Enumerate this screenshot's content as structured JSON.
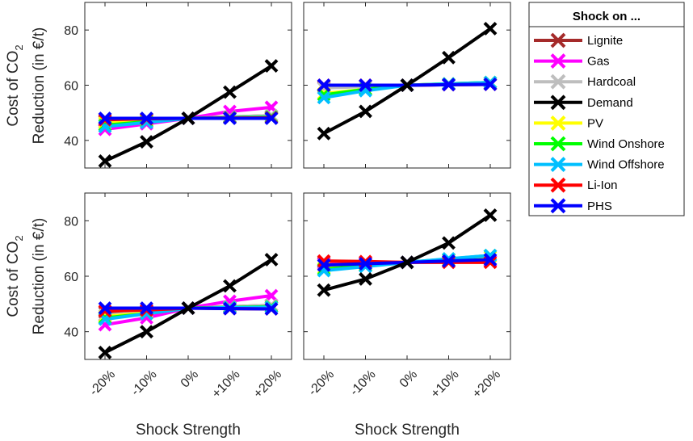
{
  "chart_data": {
    "type": "line",
    "legend": {
      "title": "Shock on ...",
      "placement": "right",
      "entries": [
        "Lignite",
        "Gas",
        "Hardcoal",
        "Demand",
        "PV",
        "Wind Onshore",
        "Wind Offshore",
        "Li-Ion",
        "PHS"
      ]
    },
    "colors": {
      "Lignite": "#a52a2a",
      "Gas": "#ff00ff",
      "Hardcoal": "#bebebe",
      "Demand": "#000000",
      "PV": "#ffff00",
      "Wind Onshore": "#00ff00",
      "Wind Offshore": "#00bfff",
      "Li-Ion": "#ff0000",
      "PHS": "#0000ff"
    },
    "x_categories": [
      "-20%",
      "-10%",
      "0%",
      "+10%",
      "+20%"
    ],
    "xlabel": "Shock Strength",
    "ylabel_line1": "Cost of CO",
    "ylabel_sub": "2",
    "ylabel_line2": "Reduction (in €/t)",
    "ylim": [
      30,
      90
    ],
    "yticks": [
      40,
      60,
      80
    ],
    "grid": false,
    "panels": [
      {
        "series": [
          {
            "name": "Lignite",
            "values": [
              47,
              47.5,
              48,
              48.5,
              49
            ]
          },
          {
            "name": "Gas",
            "values": [
              44,
              46,
              48,
              50.5,
              52
            ]
          },
          {
            "name": "Hardcoal",
            "values": [
              46,
              47,
              48,
              48.5,
              49
            ]
          },
          {
            "name": "PV",
            "values": [
              46.5,
              47.2,
              48,
              48.3,
              48.5
            ]
          },
          {
            "name": "Wind Onshore",
            "values": [
              45.5,
              46.8,
              48,
              48.3,
              48.5
            ]
          },
          {
            "name": "Wind Offshore",
            "values": [
              45,
              46.5,
              48,
              48.2,
              48.3
            ]
          },
          {
            "name": "Li-Ion",
            "values": [
              47.5,
              47.8,
              48,
              48.1,
              48.2
            ]
          },
          {
            "name": "PHS",
            "values": [
              48,
              48,
              48,
              48,
              48
            ]
          },
          {
            "name": "Demand",
            "values": [
              32.5,
              39.5,
              48,
              57.5,
              67
            ]
          }
        ]
      },
      {
        "series": [
          {
            "name": "Lignite",
            "values": [
              59.5,
              60,
              60,
              60.3,
              60.5
            ]
          },
          {
            "name": "Gas",
            "values": [
              60,
              60,
              60,
              60.2,
              60.3
            ]
          },
          {
            "name": "Hardcoal",
            "values": [
              59,
              59.5,
              60,
              60.3,
              60.5
            ]
          },
          {
            "name": "PV",
            "values": [
              57,
              58.5,
              60,
              60.5,
              61
            ]
          },
          {
            "name": "Wind Onshore",
            "values": [
              56.5,
              58.5,
              60,
              60.5,
              61
            ]
          },
          {
            "name": "Wind Offshore",
            "values": [
              55.5,
              58,
              60,
              60.5,
              61
            ]
          },
          {
            "name": "Li-Ion",
            "values": [
              60,
              60,
              60,
              60.2,
              60.3
            ]
          },
          {
            "name": "PHS",
            "values": [
              60,
              60,
              60,
              60.2,
              60.3
            ]
          },
          {
            "name": "Demand",
            "values": [
              42.5,
              50.5,
              60,
              70,
              80.5
            ]
          }
        ]
      },
      {
        "series": [
          {
            "name": "Lignite",
            "values": [
              47,
              47.5,
              48.5,
              49,
              49.5
            ]
          },
          {
            "name": "Gas",
            "values": [
              42.5,
              45,
              48.5,
              51,
              53
            ]
          },
          {
            "name": "Hardcoal",
            "values": [
              46,
              47,
              48.5,
              49,
              49.5
            ]
          },
          {
            "name": "PV",
            "values": [
              45.5,
              46.8,
              48.5,
              48.8,
              49
            ]
          },
          {
            "name": "Wind Onshore",
            "values": [
              45,
              46.5,
              48.5,
              48.8,
              49
            ]
          },
          {
            "name": "Wind Offshore",
            "values": [
              44.5,
              46.5,
              48.5,
              48.7,
              48.8
            ]
          },
          {
            "name": "Li-Ion",
            "values": [
              47.5,
              47.8,
              48.5,
              48.3,
              48.2
            ]
          },
          {
            "name": "PHS",
            "values": [
              48.5,
              48.5,
              48.5,
              48.3,
              48.2
            ]
          },
          {
            "name": "Demand",
            "values": [
              32.5,
              40,
              48.5,
              56.5,
              66
            ]
          }
        ]
      },
      {
        "series": [
          {
            "name": "Lignite",
            "values": [
              65,
              65,
              65,
              65.3,
              65.5
            ]
          },
          {
            "name": "Gas",
            "values": [
              64.5,
              64.8,
              65,
              65.3,
              65.5
            ]
          },
          {
            "name": "Hardcoal",
            "values": [
              64,
              64.5,
              65,
              65.5,
              66
            ]
          },
          {
            "name": "PV",
            "values": [
              63,
              64,
              65,
              66,
              67
            ]
          },
          {
            "name": "Wind Onshore",
            "values": [
              62.5,
              63.8,
              65,
              66.2,
              67.5
            ]
          },
          {
            "name": "Wind Offshore",
            "values": [
              62,
              63.5,
              65,
              66.3,
              67.5
            ]
          },
          {
            "name": "Li-Ion",
            "values": [
              65.5,
              65.3,
              65,
              65,
              65
            ]
          },
          {
            "name": "PHS",
            "values": [
              64,
              64.5,
              65,
              65.5,
              66
            ]
          },
          {
            "name": "Demand",
            "values": [
              55,
              59,
              65,
              72,
              82
            ]
          }
        ]
      }
    ]
  }
}
